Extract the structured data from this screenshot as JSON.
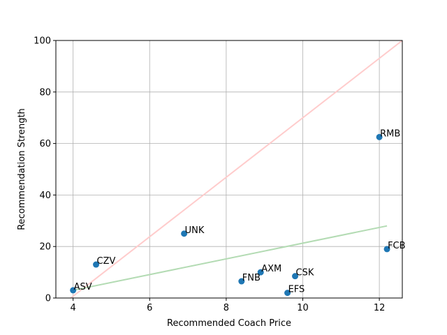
{
  "chart_data": {
    "type": "scatter",
    "title": "",
    "xlabel": "Recommended Coach Price",
    "ylabel": "Recommendation Strength",
    "xlim": [
      3.55,
      12.6
    ],
    "ylim": [
      0,
      100
    ],
    "xticks": [
      4,
      6,
      8,
      10,
      12
    ],
    "yticks": [
      0,
      20,
      40,
      60,
      80,
      100
    ],
    "grid": true,
    "point_color": "#1f77b4",
    "points": [
      {
        "label": "RMB",
        "x": 12.0,
        "y": 62.5
      },
      {
        "label": "UNK",
        "x": 6.9,
        "y": 25.0
      },
      {
        "label": "FCB",
        "x": 12.2,
        "y": 19.0
      },
      {
        "label": "CZV",
        "x": 4.6,
        "y": 13.0
      },
      {
        "label": "AXM",
        "x": 8.9,
        "y": 10.0
      },
      {
        "label": "CSK",
        "x": 9.8,
        "y": 8.5
      },
      {
        "label": "FNB",
        "x": 8.4,
        "y": 6.5
      },
      {
        "label": "ASV",
        "x": 4.0,
        "y": 3.0
      },
      {
        "label": "EFS",
        "x": 9.6,
        "y": 2.0
      }
    ],
    "reference_lines": [
      {
        "name": "",
        "color": "#ffcccc",
        "x": [
          3.55,
          12.6
        ],
        "y": [
          -4.5,
          100
        ]
      },
      {
        "name": "",
        "color": "#b3dbb3",
        "x": [
          4.0,
          12.2
        ],
        "y": [
          3.0,
          28.0
        ]
      }
    ]
  }
}
